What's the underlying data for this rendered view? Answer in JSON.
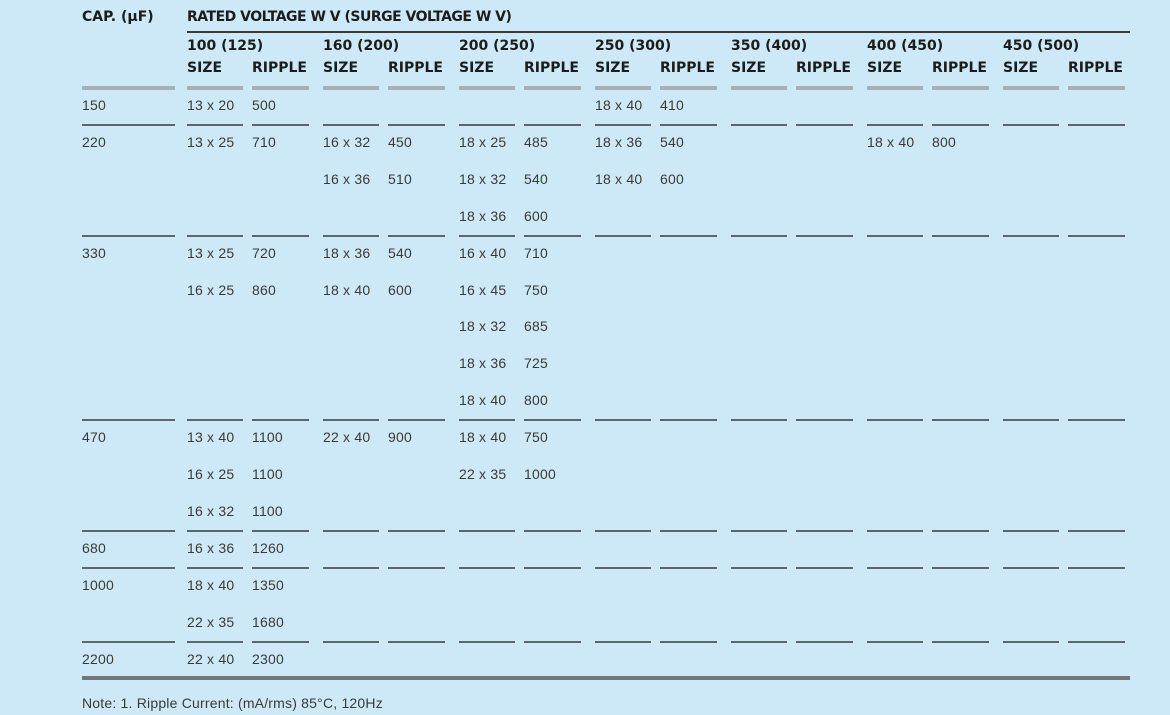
{
  "header": {
    "cap_label": "CAP. (µF)",
    "rated_label": "RATED VOLTAGE W V (SURGE VOLTAGE W V)",
    "voltages": [
      "100 (125)",
      "160 (200)",
      "200 (250)",
      "250 (300)",
      "350 (400)",
      "400 (450)",
      "450 (500)"
    ],
    "size_label": "SIZE",
    "ripple_label": "RIPPLE"
  },
  "groups": [
    {
      "cap": "150",
      "rows": [
        [
          "13 x 20",
          "500",
          "",
          "",
          "",
          "",
          "18 x 40",
          "410",
          "",
          "",
          "",
          "",
          "",
          ""
        ]
      ]
    },
    {
      "cap": "220",
      "rows": [
        [
          "13 x 25",
          "710",
          "16 x 32",
          "450",
          "18 x 25",
          "485",
          "18 x 36",
          "540",
          "",
          "",
          "18 x 40",
          "800",
          "",
          ""
        ],
        [
          "",
          "",
          "16 x 36",
          "510",
          "18 x 32",
          "540",
          "18 x 40",
          "600",
          "",
          "",
          "",
          "",
          "",
          ""
        ],
        [
          "",
          "",
          "",
          "",
          "18 x 36",
          "600",
          "",
          "",
          "",
          "",
          "",
          "",
          "",
          ""
        ]
      ]
    },
    {
      "cap": "330",
      "rows": [
        [
          "13 x 25",
          "720",
          "18 x 36",
          "540",
          "16 x 40",
          "710",
          "",
          "",
          "",
          "",
          "",
          "",
          "",
          ""
        ],
        [
          "16 x 25",
          "860",
          "18 x 40",
          "600",
          "16 x 45",
          "750",
          "",
          "",
          "",
          "",
          "",
          "",
          "",
          ""
        ],
        [
          "",
          "",
          "",
          "",
          "18 x 32",
          "685",
          "",
          "",
          "",
          "",
          "",
          "",
          "",
          ""
        ],
        [
          "",
          "",
          "",
          "",
          "18 x 36",
          "725",
          "",
          "",
          "",
          "",
          "",
          "",
          "",
          ""
        ],
        [
          "",
          "",
          "",
          "",
          "18 x 40",
          "800",
          "",
          "",
          "",
          "",
          "",
          "",
          "",
          ""
        ]
      ]
    },
    {
      "cap": "470",
      "rows": [
        [
          "13 x 40",
          "1100",
          "22 x 40",
          "900",
          "18 x 40",
          "750",
          "",
          "",
          "",
          "",
          "",
          "",
          "",
          ""
        ],
        [
          "16 x 25",
          "1100",
          "",
          "",
          "22 x 35",
          "1000",
          "",
          "",
          "",
          "",
          "",
          "",
          "",
          ""
        ],
        [
          "16 x 32",
          "1100",
          "",
          "",
          "",
          "",
          "",
          "",
          "",
          "",
          "",
          "",
          "",
          ""
        ]
      ]
    },
    {
      "cap": "680",
      "rows": [
        [
          "16 x 36",
          "1260",
          "",
          "",
          "",
          "",
          "",
          "",
          "",
          "",
          "",
          "",
          "",
          ""
        ]
      ]
    },
    {
      "cap": "1000",
      "rows": [
        [
          "18 x 40",
          "1350",
          "",
          "",
          "",
          "",
          "",
          "",
          "",
          "",
          "",
          "",
          "",
          ""
        ],
        [
          "22 x 35",
          "1680",
          "",
          "",
          "",
          "",
          "",
          "",
          "",
          "",
          "",
          "",
          "",
          ""
        ]
      ]
    },
    {
      "cap": "2200",
      "rows": [
        [
          "22 x 40",
          "2300",
          "",
          "",
          "",
          "",
          "",
          "",
          "",
          "",
          "",
          "",
          "",
          ""
        ]
      ]
    }
  ],
  "note": "Note: 1. Ripple Current: (mA/rms) 85°C, 120Hz"
}
